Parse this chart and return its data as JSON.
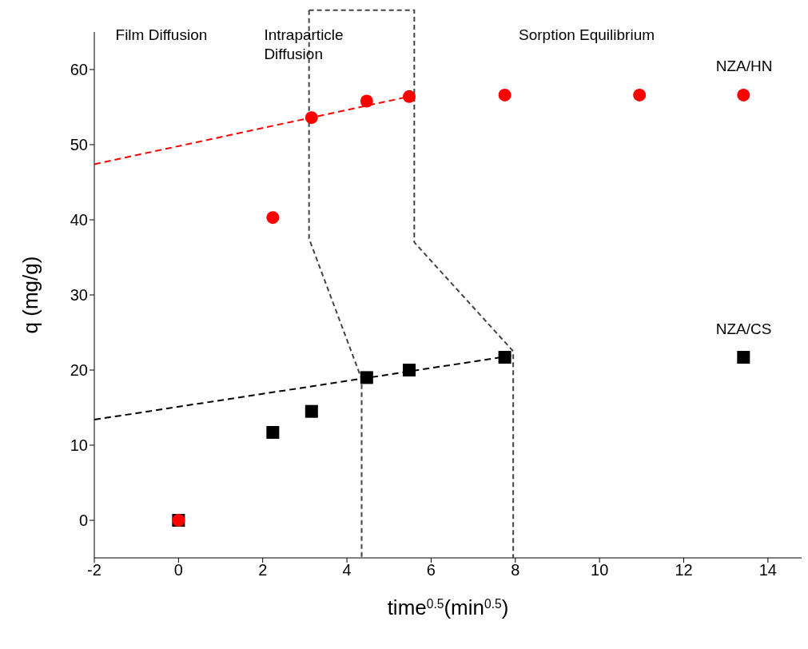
{
  "chart_data": {
    "type": "scatter",
    "xlabel": "time$^{0.5}$(min$^{0.5}$)",
    "ylabel": "q (mg/g)",
    "xlim": [
      -2,
      14.8
    ],
    "xticks": [
      -2,
      0,
      2,
      4,
      6,
      8,
      10,
      12,
      14
    ],
    "ylim": [
      -5,
      65
    ],
    "yticks": [
      0,
      10,
      20,
      30,
      40,
      50,
      60
    ],
    "annotations": [
      "Film Diffusion",
      "Intraparticle Diffusion",
      "Sorption Equilibrium"
    ],
    "series": [
      {
        "name": "NZA/HN",
        "type": "scatter",
        "marker": "circle",
        "color": "#ff0000",
        "x": [
          0,
          2.24,
          3.16,
          4.47,
          5.48,
          7.75,
          10.95,
          13.42
        ],
        "values": [
          0,
          40.3,
          53.6,
          55.8,
          56.4,
          56.6,
          56.6,
          56.6
        ]
      },
      {
        "name": "NZA/CS",
        "type": "scatter",
        "marker": "square",
        "color": "#000000",
        "x": [
          0,
          2.24,
          3.16,
          4.47,
          5.48,
          7.75,
          13.42
        ],
        "values": [
          0,
          11.7,
          14.5,
          19,
          20,
          21.7,
          21.7
        ]
      },
      {
        "type": "line",
        "line_style": "dashed",
        "marker": "none",
        "color": "#ff0000",
        "x": [
          -2,
          5.48
        ],
        "values": [
          47.4,
          56.4
        ]
      },
      {
        "type": "line",
        "line_style": "dashed",
        "marker": "none",
        "color": "#000000",
        "x": [
          -2,
          7.9
        ],
        "values": [
          13.4,
          21.9
        ]
      }
    ]
  }
}
